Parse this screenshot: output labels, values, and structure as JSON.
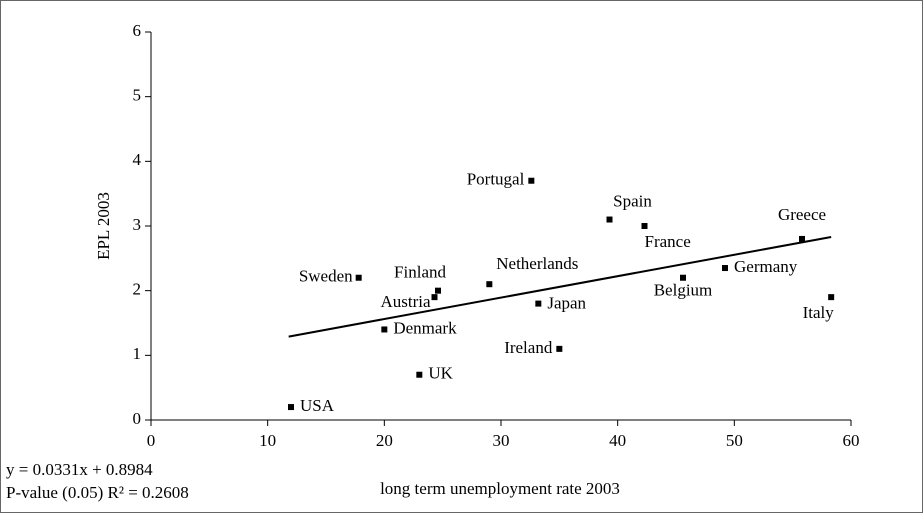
{
  "chart_data": {
    "type": "scatter",
    "x_label": "long term unemployment rate 2003",
    "y_label": "EPL 2003",
    "labels": [
      "USA",
      "UK",
      "Denmark",
      "Sweden",
      "Finland",
      "Austria",
      "Netherlands",
      "Japan",
      "Ireland",
      "Portugal",
      "Spain",
      "France",
      "Belgium",
      "Germany",
      "Greece",
      "Italy"
    ],
    "x": [
      12.0,
      23.0,
      20.0,
      17.8,
      24.6,
      24.3,
      29.0,
      33.2,
      35.0,
      32.6,
      39.3,
      42.3,
      45.6,
      49.2,
      55.8,
      58.3
    ],
    "y": [
      0.2,
      0.7,
      1.4,
      2.2,
      2.0,
      1.9,
      2.1,
      1.8,
      1.1,
      3.7,
      3.1,
      3.0,
      2.2,
      2.35,
      2.8,
      1.9
    ],
    "color": "#000000",
    "trendline": {
      "x": [
        11.8,
        58.3
      ],
      "y": [
        1.29,
        2.83
      ]
    },
    "annotations": [
      "y = 0.0331x + 0.8984",
      "P-value (0.05) R² = 0.2608"
    ],
    "xlim": [
      0,
      60
    ],
    "xticks": [
      0,
      10,
      20,
      30,
      40,
      50,
      60
    ],
    "ylim": [
      0,
      6
    ],
    "yticks": [
      0,
      1,
      2,
      3,
      4,
      5,
      6
    ]
  }
}
